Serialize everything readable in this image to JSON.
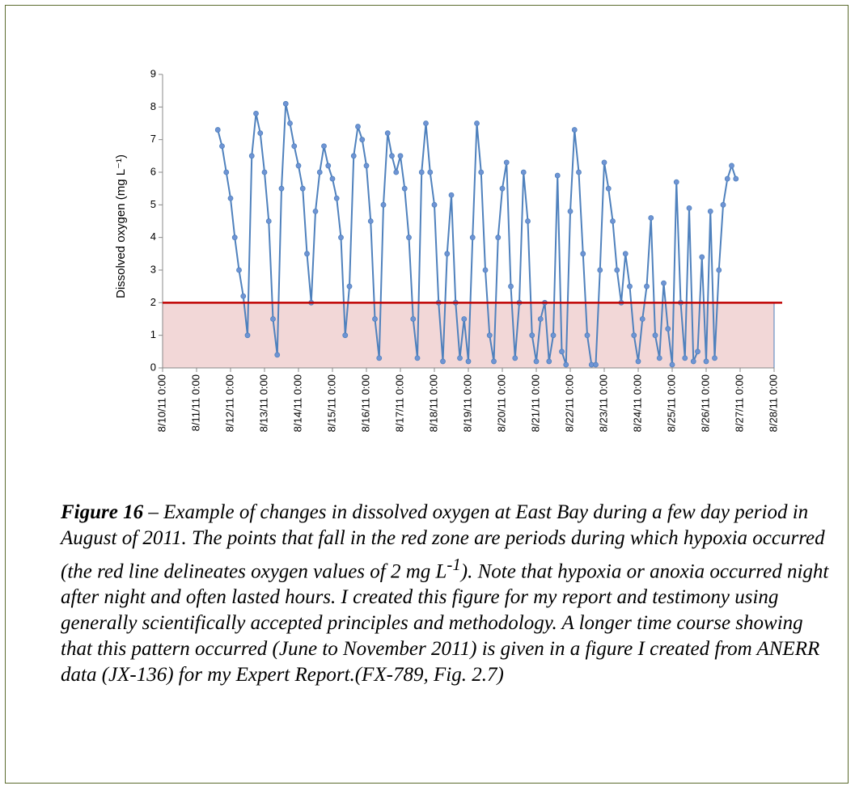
{
  "chart_data": {
    "type": "line",
    "ylabel": "Dissolved oxygen (mg L⁻¹)",
    "x": [
      "8/11/11 15:00",
      "8/11/11 18:00",
      "8/11/11 21:00",
      "8/12/11 0:00",
      "8/12/11 3:00",
      "8/12/11 6:00",
      "8/12/11 9:00",
      "8/12/11 12:00",
      "8/12/11 15:00",
      "8/12/11 18:00",
      "8/12/11 21:00",
      "8/13/11 0:00",
      "8/13/11 3:00",
      "8/13/11 6:00",
      "8/13/11 9:00",
      "8/13/11 12:00",
      "8/13/11 15:00",
      "8/13/11 18:00",
      "8/13/11 21:00",
      "8/14/11 0:00",
      "8/14/11 3:00",
      "8/14/11 6:00",
      "8/14/11 9:00",
      "8/14/11 12:00",
      "8/14/11 15:00",
      "8/14/11 18:00",
      "8/14/11 21:00",
      "8/15/11 0:00",
      "8/15/11 3:00",
      "8/15/11 6:00",
      "8/15/11 9:00",
      "8/15/11 12:00",
      "8/15/11 15:00",
      "8/15/11 18:00",
      "8/15/11 21:00",
      "8/16/11 0:00",
      "8/16/11 3:00",
      "8/16/11 6:00",
      "8/16/11 9:00",
      "8/16/11 12:00",
      "8/16/11 15:00",
      "8/16/11 18:00",
      "8/16/11 21:00",
      "8/17/11 0:00",
      "8/17/11 3:00",
      "8/17/11 6:00",
      "8/17/11 9:00",
      "8/17/11 12:00",
      "8/17/11 15:00",
      "8/17/11 18:00",
      "8/17/11 21:00",
      "8/18/11 0:00",
      "8/18/11 3:00",
      "8/18/11 6:00",
      "8/18/11 9:00",
      "8/18/11 12:00",
      "8/18/11 15:00",
      "8/18/11 18:00",
      "8/18/11 21:00",
      "8/19/11 0:00",
      "8/19/11 3:00",
      "8/19/11 6:00",
      "8/19/11 9:00",
      "8/19/11 12:00",
      "8/19/11 15:00",
      "8/19/11 18:00",
      "8/19/11 21:00",
      "8/20/11 0:00",
      "8/20/11 3:00",
      "8/20/11 6:00",
      "8/20/11 9:00",
      "8/20/11 12:00",
      "8/20/11 15:00",
      "8/20/11 18:00",
      "8/20/11 21:00",
      "8/21/11 0:00",
      "8/21/11 3:00",
      "8/21/11 6:00",
      "8/21/11 9:00",
      "8/21/11 12:00",
      "8/21/11 15:00",
      "8/21/11 18:00",
      "8/21/11 21:00",
      "8/22/11 0:00",
      "8/22/11 3:00",
      "8/22/11 6:00",
      "8/22/11 9:00",
      "8/22/11 12:00",
      "8/22/11 15:00",
      "8/22/11 18:00",
      "8/22/11 21:00",
      "8/23/11 0:00",
      "8/23/11 3:00",
      "8/23/11 6:00",
      "8/23/11 9:00",
      "8/23/11 12:00",
      "8/23/11 15:00",
      "8/23/11 18:00",
      "8/23/11 21:00",
      "8/24/11 0:00",
      "8/24/11 3:00",
      "8/24/11 6:00",
      "8/24/11 9:00",
      "8/24/11 12:00",
      "8/24/11 15:00",
      "8/24/11 18:00",
      "8/24/11 21:00",
      "8/25/11 0:00",
      "8/25/11 3:00",
      "8/25/11 6:00",
      "8/25/11 9:00",
      "8/25/11 12:00",
      "8/25/11 15:00",
      "8/25/11 18:00",
      "8/25/11 21:00",
      "8/26/11 0:00",
      "8/26/11 3:00",
      "8/26/11 6:00",
      "8/26/11 9:00",
      "8/26/11 12:00",
      "8/26/11 15:00",
      "8/26/11 18:00",
      "8/26/11 21:00"
    ],
    "series": [
      {
        "color": "#4f81bd",
        "values": [
          7.3,
          6.8,
          6.0,
          5.2,
          4.0,
          3.0,
          2.2,
          1.0,
          6.5,
          7.8,
          7.2,
          6.0,
          4.5,
          1.5,
          0.4,
          5.5,
          8.1,
          7.5,
          6.8,
          6.2,
          5.5,
          3.5,
          2.0,
          4.8,
          6.0,
          6.8,
          6.2,
          5.8,
          5.2,
          4.0,
          1.0,
          2.5,
          6.5,
          7.4,
          7.0,
          6.2,
          4.5,
          1.5,
          0.3,
          5.0,
          7.2,
          6.5,
          6.0,
          6.5,
          5.5,
          4.0,
          1.5,
          0.3,
          6.0,
          7.5,
          6.0,
          5.0,
          2.0,
          0.2,
          3.5,
          5.3,
          2.0,
          0.3,
          1.5,
          0.2,
          4.0,
          7.5,
          6.0,
          3.0,
          1.0,
          0.2,
          4.0,
          5.5,
          6.3,
          2.5,
          0.3,
          2.0,
          6.0,
          4.5,
          1.0,
          0.2,
          1.5,
          2.0,
          0.2,
          1.0,
          5.9,
          0.5,
          0.1,
          4.8,
          7.3,
          6.0,
          3.5,
          1.0,
          0.1,
          0.1,
          3.0,
          6.3,
          5.5,
          4.5,
          3.0,
          2.0,
          3.5,
          2.5,
          1.0,
          0.2,
          1.5,
          2.5,
          4.6,
          1.0,
          0.3,
          2.6,
          1.2,
          0.1,
          5.7,
          2.0,
          0.3,
          4.9,
          0.2,
          0.5,
          3.4,
          0.2,
          4.8,
          0.3,
          3.0,
          5.0,
          5.8,
          6.2,
          5.8
        ]
      }
    ],
    "xlim": [
      "8/10/11 0:00",
      "8/28/11 0:00"
    ],
    "xticks": [
      "8/10/11 0:00",
      "8/11/11 0:00",
      "8/12/11 0:00",
      "8/13/11 0:00",
      "8/14/11 0:00",
      "8/15/11 0:00",
      "8/16/11 0:00",
      "8/17/11 0:00",
      "8/18/11 0:00",
      "8/19/11 0:00",
      "8/20/11 0:00",
      "8/21/11 0:00",
      "8/22/11 0:00",
      "8/23/11 0:00",
      "8/24/11 0:00",
      "8/25/11 0:00",
      "8/26/11 0:00",
      "8/27/11 0:00",
      "8/28/11 0:00"
    ],
    "ylim": [
      0,
      9
    ],
    "yticks": [
      0,
      1,
      2,
      3,
      4,
      5,
      6,
      7,
      8,
      9
    ],
    "threshold": 2,
    "threshold_color": "#c00000",
    "zone_color": "#f2d7d7"
  },
  "caption": {
    "label": "Figure 16",
    "text1": " – Example of changes in dissolved oxygen at East Bay during a few day period in August of 2011. The points that fall in the red zone are periods during which hypoxia occurred (the red line delineates oxygen values of 2 mg L",
    "sup": "-1",
    "text2": "). Note that hypoxia or anoxia occurred night after night and often lasted hours. I created this figure for my report and testimony using generally scientifically accepted principles and methodology.  A longer time course showing that this pattern occurred (June to November 2011) is given in a figure I created from ANERR data (JX-136)  for my Expert Report.(FX-789, Fig. 2.7)"
  }
}
